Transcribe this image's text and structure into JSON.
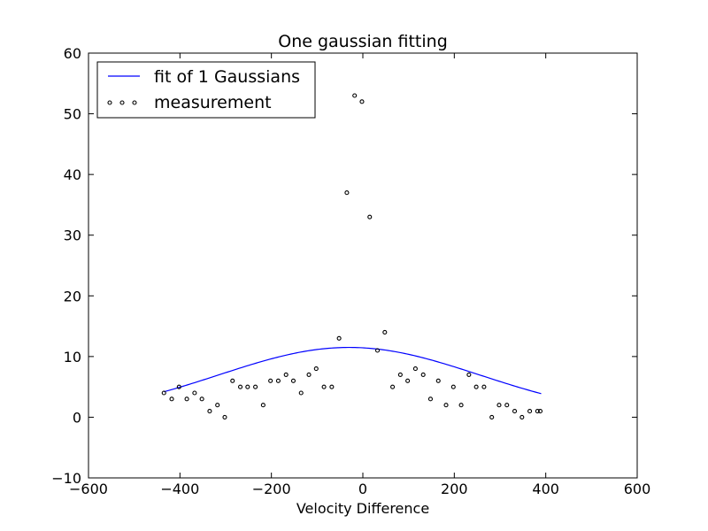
{
  "chart_data": {
    "type": "scatter",
    "title": "One gaussian fitting",
    "xlabel": "Velocity Difference",
    "ylabel": "",
    "xlim": [
      -600,
      600
    ],
    "ylim": [
      -10,
      60
    ],
    "x_ticks": [
      -600,
      -400,
      -200,
      0,
      200,
      400,
      600
    ],
    "y_ticks": [
      -10,
      0,
      10,
      20,
      30,
      40,
      50,
      60
    ],
    "x_tick_labels": [
      "−600",
      "−400",
      "−200",
      "0",
      "200",
      "400",
      "600"
    ],
    "y_tick_labels": [
      "−10",
      "0",
      "10",
      "20",
      "30",
      "40",
      "50",
      "60"
    ],
    "grid": false,
    "legend_position": "top-left",
    "series": [
      {
        "name": "fit of 1 Gaussians",
        "kind": "line",
        "color": "#0000ff",
        "gaussian": {
          "amplitude": 11.5,
          "mean": -30,
          "sigma": 285
        },
        "x_range": [
          -435,
          390
        ]
      },
      {
        "name": "measurement",
        "kind": "scatter",
        "color": "#000000",
        "x": [
          -435,
          -418,
          -402,
          -385,
          -368,
          -352,
          -335,
          -318,
          -302,
          -285,
          -268,
          -252,
          -235,
          -218,
          -202,
          -185,
          -168,
          -152,
          -135,
          -118,
          -102,
          -85,
          -68,
          -52,
          -35,
          -18,
          -2,
          15,
          32,
          48,
          65,
          82,
          98,
          115,
          132,
          148,
          165,
          182,
          198,
          215,
          232,
          248,
          265,
          282,
          298,
          315,
          332,
          348,
          365,
          382,
          388
        ],
        "y": [
          4,
          3,
          5,
          3,
          4,
          3,
          1,
          2,
          0,
          6,
          5,
          5,
          5,
          2,
          6,
          6,
          7,
          6,
          4,
          7,
          8,
          5,
          5,
          13,
          37,
          53,
          52,
          33,
          11,
          14,
          5,
          7,
          6,
          8,
          7,
          3,
          6,
          2,
          5,
          2,
          7,
          5,
          5,
          0,
          2,
          2,
          1,
          0,
          1,
          1,
          1
        ]
      }
    ]
  }
}
